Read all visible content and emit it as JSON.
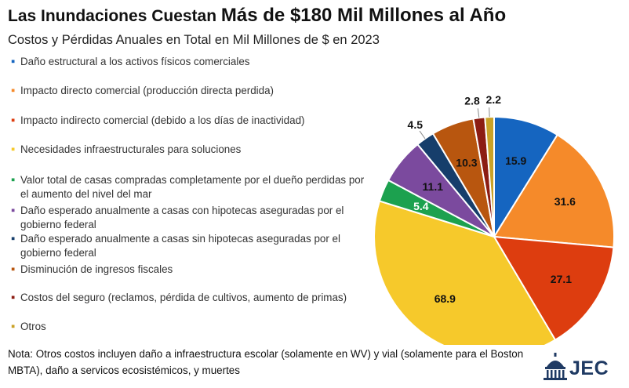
{
  "title_part1": "Las Inundaciones Cuestan ",
  "title_part2": "Más de $180 Mil Millones al Año",
  "subtitle": "Costos y Pérdidas Anuales en Total en Mil Millones de $ en 2023",
  "note": "Nota: Otros costos incluyen daño a infraestructura escolar (solamente en WV) y vial (solamente para el Boston MBTA), daño a servicos ecosistémicos, y muertes",
  "logo_text": "JEC",
  "chart_data": {
    "type": "pie",
    "title": "Las Inundaciones Cuestan Más de $180 Mil Millones al Año",
    "subtitle": "Costos y Pérdidas Anuales en Total en Mil Millones de $ en 2023",
    "start_angle_deg": 0,
    "direction": "clockwise",
    "legend_position": "left",
    "categories": [
      "Daño estructural a los activos físicos comerciales",
      "Impacto directo comercial (producción directa perdida)",
      "Impacto indirecto comercial (debido a los días de inactividad)",
      "Necesidades infraestructurales para soluciones",
      "Valor total de casas compradas completamente por el dueño perdidas por el aumento del nivel del mar",
      "Daño esperado anualmente a casas con hipotecas aseguradas por el gobierno federal",
      "Daño esperado anualmente a casas sin hipotecas aseguradas por el gobierno federal",
      "Disminución de ingresos fiscales",
      "Costos del seguro (reclamos, pérdida de cultivos, aumento de primas)",
      "Otros"
    ],
    "values": [
      15.9,
      31.6,
      27.1,
      68.9,
      5.4,
      11.1,
      4.5,
      10.3,
      2.8,
      2.2
    ],
    "labels": [
      "15.9",
      "31.6",
      "27.1",
      "68.9",
      "5.4",
      "11.1",
      "4.5",
      "10.3",
      "2.8",
      "2.2"
    ],
    "colors": [
      "#1565c0",
      "#f58a2a",
      "#dd3d0f",
      "#f6c92b",
      "#1ca14f",
      "#7b4a9e",
      "#163e6b",
      "#b8560f",
      "#8c1d13",
      "#c9a227"
    ],
    "label_colors": [
      "#111111",
      "#111111",
      "#111111",
      "#111111",
      "#ffffff",
      "#111111",
      "#111111",
      "#111111",
      "#111111",
      "#111111"
    ],
    "outside_labels": [
      false,
      false,
      false,
      false,
      false,
      false,
      true,
      false,
      true,
      true
    ]
  }
}
